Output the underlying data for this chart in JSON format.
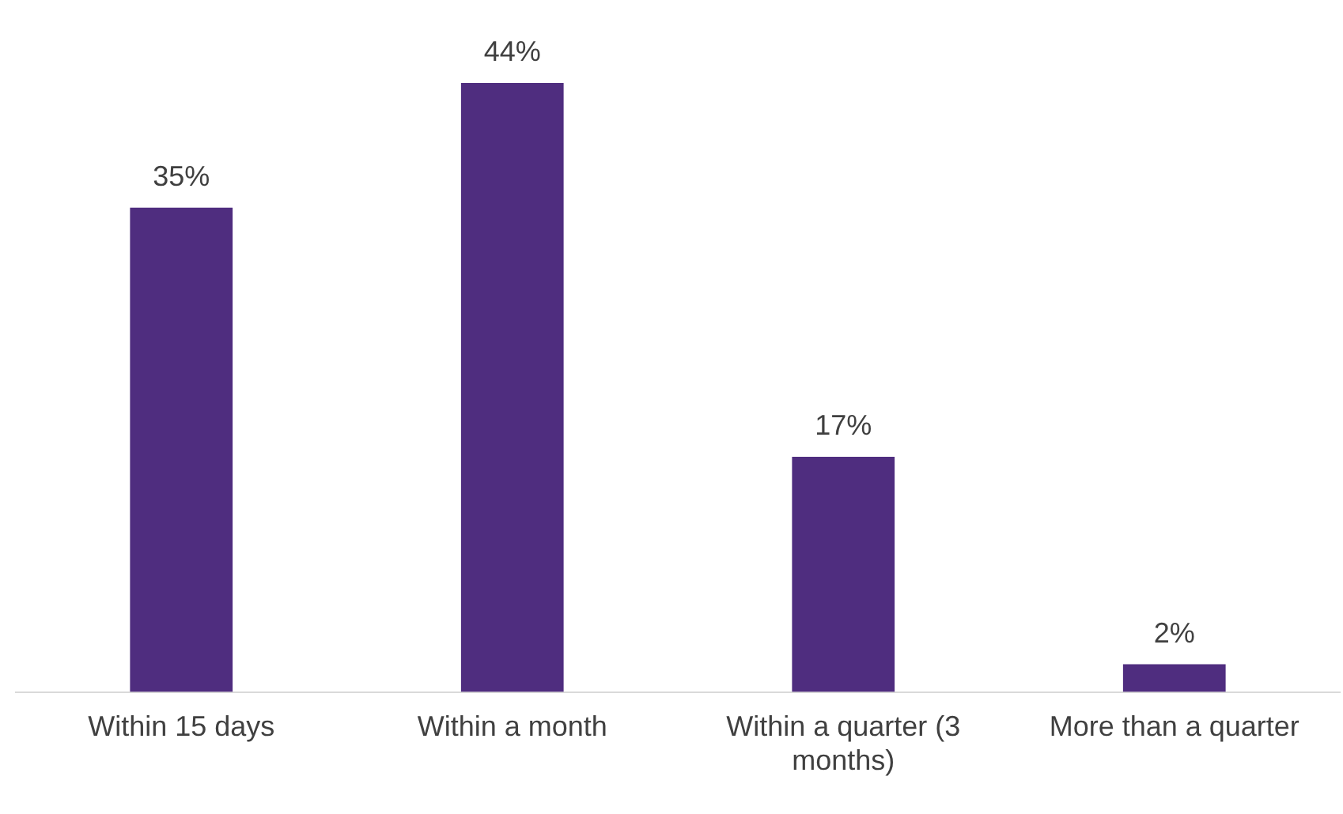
{
  "chart_data": {
    "type": "bar",
    "categories": [
      "Within 15 days",
      "Within a month",
      "Within a quarter (3 months)",
      "More than a quarter"
    ],
    "values": [
      35,
      44,
      17,
      2
    ],
    "value_labels": [
      "35%",
      "44%",
      "17%",
      "2%"
    ],
    "color": "#4f2d7f",
    "grid": false,
    "legend": false,
    "tick_labels": "x"
  }
}
